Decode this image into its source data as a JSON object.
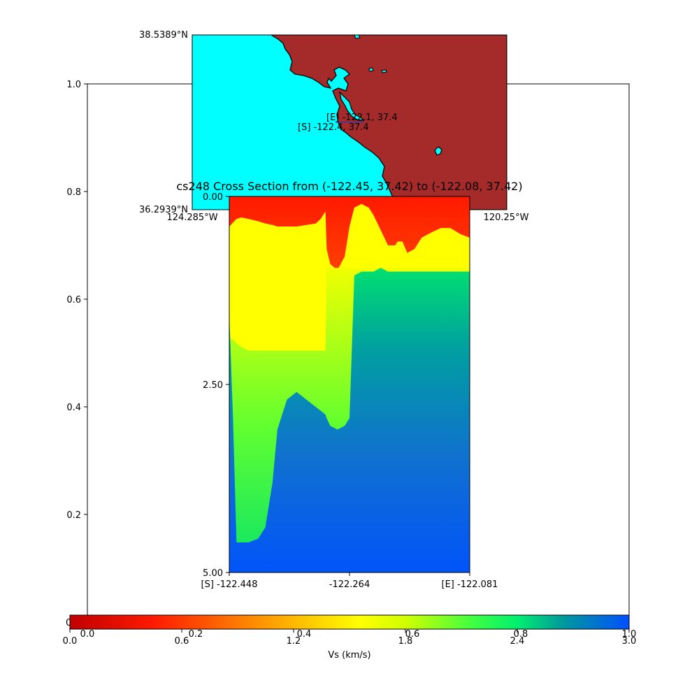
{
  "chart_data": [
    {
      "type": "axes",
      "ylim": [
        0,
        1
      ],
      "ytick_labels": [
        "0.2",
        "0.4",
        "0.6",
        "0.8",
        "1.0"
      ],
      "ytick_values": [
        0.2,
        0.4,
        0.6,
        0.8,
        1.0
      ],
      "bottom_label_partial": "0"
    },
    {
      "type": "map",
      "lat_labels": [
        "38.5389°N",
        "36.2939°N"
      ],
      "lon_labels": [
        "124.285°W",
        "120.25°W"
      ],
      "lat_range": [
        36.2939,
        38.5389
      ],
      "lon_range": [
        -124.285,
        -120.25
      ],
      "line_start": [
        -122.448,
        37.42
      ],
      "line_end": [
        -122.081,
        37.42
      ],
      "annotations": [
        "[S] -122.4, 37.4",
        "[E] -122.1, 37.4"
      ],
      "colors": {
        "ocean": "#00ffff",
        "land": "#a52a2a",
        "coast": "#000000"
      }
    },
    {
      "type": "heatmap",
      "title": "cs248 Cross Section from (-122.45, 37.42) to (-122.08, 37.42)",
      "ytick_labels": [
        "0.00",
        "2.50",
        "5.00"
      ],
      "ylim": [
        5.0,
        0.0
      ],
      "xtick_labels": [
        "[S] -122.448",
        "-122.264",
        "[E] -122.081"
      ],
      "xlim": [
        -122.448,
        -122.081
      ],
      "profile_x": [
        0.0,
        0.015,
        0.03,
        0.05,
        0.08,
        0.12,
        0.15,
        0.18,
        0.2,
        0.24,
        0.28,
        0.32,
        0.36,
        0.38,
        0.4,
        0.405,
        0.42,
        0.45,
        0.48,
        0.5,
        0.52,
        0.55,
        0.58,
        0.6,
        0.63,
        0.66,
        0.69,
        0.7,
        0.72,
        0.74,
        0.77,
        0.8,
        0.84,
        0.88,
        0.92,
        0.96,
        1.0
      ],
      "depth_yellow_top_km": [
        0.4,
        0.35,
        0.3,
        0.28,
        0.3,
        0.33,
        0.36,
        0.38,
        0.4,
        0.4,
        0.4,
        0.38,
        0.36,
        0.3,
        0.2,
        0.7,
        0.9,
        0.98,
        0.8,
        0.4,
        0.15,
        0.1,
        0.15,
        0.25,
        0.45,
        0.65,
        0.65,
        0.6,
        0.6,
        0.75,
        0.7,
        0.55,
        0.48,
        0.42,
        0.42,
        0.5,
        0.55
      ],
      "depth_yellow_bottom_km": [
        1.9,
        1.9,
        1.95,
        2.0,
        2.05,
        2.05,
        2.05,
        2.05,
        2.05,
        2.05,
        2.05,
        2.05,
        2.05,
        2.05,
        2.05,
        0.95,
        0.95,
        0.95,
        0.95,
        0.95,
        0.95,
        0.95,
        0.95,
        0.95,
        0.95,
        0.95,
        0.95,
        0.95,
        0.95,
        0.95,
        0.95,
        0.95,
        0.95,
        0.95,
        0.95,
        0.95,
        0.95
      ],
      "depth_basement_km": [
        1.55,
        2.9,
        4.6,
        4.6,
        4.6,
        4.55,
        4.4,
        3.8,
        3.1,
        2.7,
        2.6,
        2.7,
        2.8,
        2.85,
        2.9,
        2.95,
        3.05,
        3.1,
        3.05,
        2.95,
        1.05,
        1.0,
        1.0,
        1.0,
        0.95,
        1.0,
        1.0,
        1.0,
        1.0,
        1.0,
        1.0,
        1.0,
        1.0,
        1.0,
        1.0,
        1.0,
        1.0
      ],
      "vs_surface_kms": 0.4,
      "vs_yellow_kms": 1.7,
      "vs_basement_kms": 3.0
    },
    {
      "type": "colorbar",
      "label": "Vs (km/s)",
      "vmin": 0.0,
      "vmax": 3.0,
      "tick_labels": [
        "0.0",
        "0.6",
        "1.2",
        "1.8",
        "2.4",
        "3.0"
      ],
      "tick_values": [
        0.0,
        0.6,
        1.2,
        1.8,
        2.4,
        3.0
      ],
      "overlay_tick_labels": [
        "0.0",
        "0.2",
        "0.4",
        "0.6",
        "0.8",
        "1.0"
      ],
      "overlay_tick_values": [
        0.0,
        0.2,
        0.4,
        0.6,
        0.8,
        1.0
      ]
    }
  ]
}
